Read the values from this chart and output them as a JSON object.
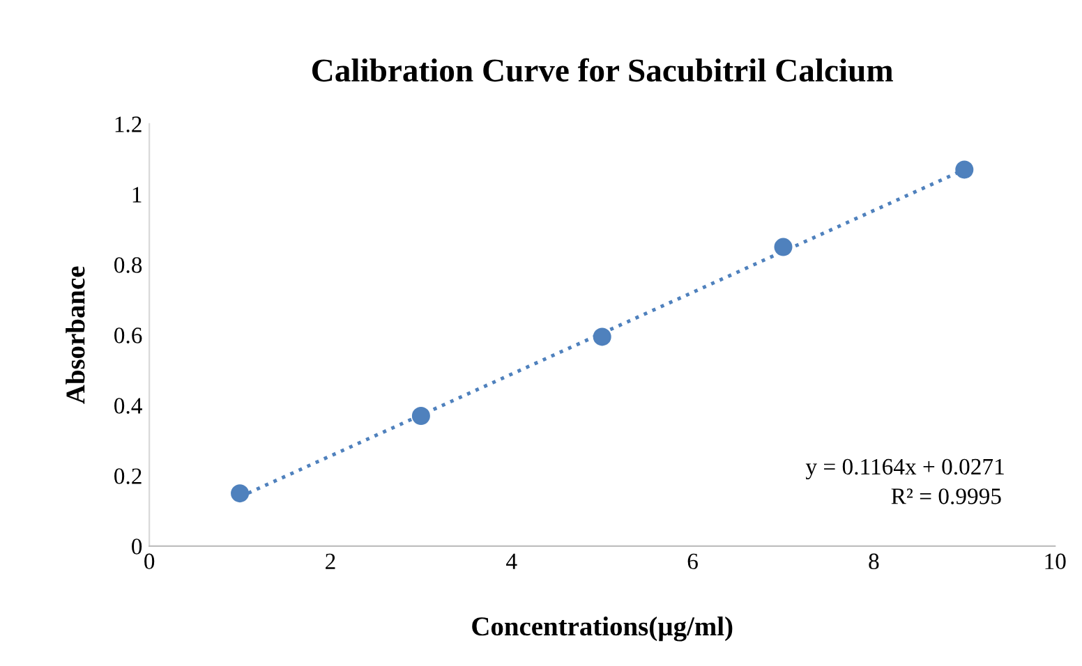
{
  "chart_data": {
    "type": "scatter",
    "title": "Calibration Curve for Sacubitril Calcium",
    "xlabel": "Concentrations(µg/ml)",
    "ylabel": "Absorbance",
    "series": [
      {
        "color": "#4f81bd",
        "x": [
          1,
          3,
          5,
          7,
          9
        ],
        "values": [
          0.15,
          0.37,
          0.595,
          0.85,
          1.07
        ],
        "marker": "circle"
      },
      {
        "type": "line",
        "color": "#4f81bd",
        "x": [
          1,
          9
        ],
        "values": [
          0.14,
          1.07
        ],
        "line_style": "dotted",
        "marker": "none"
      }
    ],
    "annotations": [
      "y = 0.1164x + 0.0271",
      "R² = 0.9995"
    ],
    "xlim": [
      0,
      10
    ],
    "xticks": [
      0,
      2,
      4,
      6,
      8,
      10
    ],
    "ylim": [
      0,
      1.2
    ],
    "yticks": [
      0,
      0.2,
      0.4,
      0.6,
      0.8,
      1,
      1.2
    ],
    "grid": false,
    "legend": false
  }
}
